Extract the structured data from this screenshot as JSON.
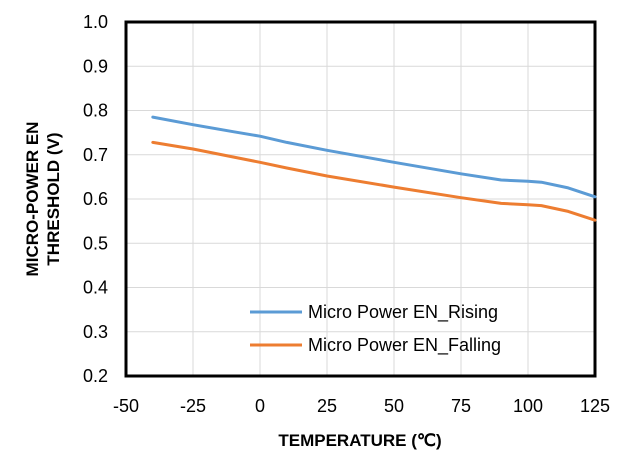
{
  "chart_data": {
    "type": "line",
    "xlabel": "TEMPERATURE  (℃)",
    "ylabel": [
      "MICRO-POWER  EN",
      "THRESHOLD  (V)"
    ],
    "xlim": [
      -50,
      125
    ],
    "ylim": [
      0.2,
      1.0
    ],
    "xticks": [
      -50,
      -25,
      0,
      25,
      50,
      75,
      100,
      125
    ],
    "yticks": [
      0.2,
      0.3,
      0.4,
      0.5,
      0.6,
      0.7,
      0.8,
      0.9,
      1.0
    ],
    "xtick_labels": [
      "-50",
      "-25",
      "0",
      "25",
      "50",
      "75",
      "100",
      "125"
    ],
    "ytick_labels": [
      "0.2",
      "0.3",
      "0.4",
      "0.5",
      "0.6",
      "0.7",
      "0.8",
      "0.9",
      "1.0"
    ],
    "grid": true,
    "legend_position": "bottom-right",
    "series": [
      {
        "name": "Micro Power EN_Rising",
        "color": "#5b9bd5",
        "x": [
          -40,
          -25,
          -10,
          0,
          10,
          25,
          50,
          75,
          90,
          100,
          105,
          115,
          125
        ],
        "y": [
          0.785,
          0.768,
          0.752,
          0.742,
          0.728,
          0.71,
          0.683,
          0.657,
          0.643,
          0.64,
          0.638,
          0.625,
          0.605
        ]
      },
      {
        "name": "Micro Power EN_Falling",
        "color": "#ed7d31",
        "x": [
          -40,
          -25,
          -10,
          0,
          10,
          25,
          50,
          75,
          90,
          100,
          105,
          115,
          125
        ],
        "y": [
          0.728,
          0.713,
          0.695,
          0.683,
          0.67,
          0.652,
          0.627,
          0.603,
          0.59,
          0.587,
          0.585,
          0.572,
          0.552
        ]
      }
    ]
  }
}
